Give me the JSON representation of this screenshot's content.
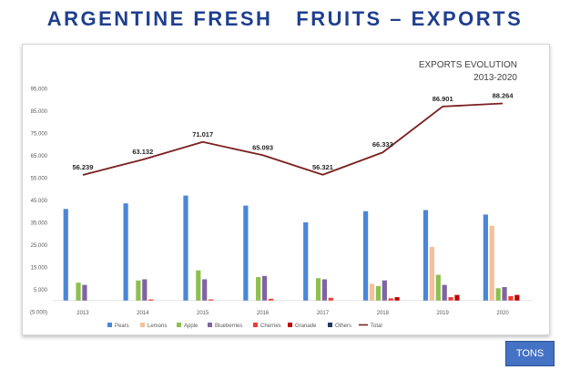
{
  "page": {
    "title": "ARGENTINE FRESH   FRUITS – EXPORTS",
    "units_label": "TONS"
  },
  "chart_data": {
    "type": "bar",
    "title": "EXPORTS EVOLUTION",
    "subtitle": "2013-2020",
    "categories": [
      "2013",
      "2014",
      "2015",
      "2016",
      "2017",
      "2018",
      "2019",
      "2020"
    ],
    "ylim": [
      -5000,
      95000
    ],
    "yticks": [
      "(5.000)",
      "5.000",
      "15.000",
      "25.000",
      "35.000",
      "45.000",
      "55.000",
      "65.000",
      "75.000",
      "85.000",
      "95.000"
    ],
    "legend_position": "bottom",
    "series": [
      {
        "name": "Pears",
        "color": "#4a86d8",
        "values": [
          41000,
          43500,
          47000,
          42500,
          35000,
          40000,
          40500,
          38500
        ]
      },
      {
        "name": "Lemons",
        "color": "#f4c09a",
        "values": [
          0,
          0,
          0,
          0,
          0,
          7500,
          24000,
          33500
        ]
      },
      {
        "name": "Apple",
        "color": "#8dc04f",
        "values": [
          8000,
          9000,
          13500,
          10500,
          10000,
          6500,
          11500,
          5500
        ]
      },
      {
        "name": "Blueberries",
        "color": "#8064a2",
        "values": [
          7000,
          9500,
          9500,
          11000,
          9500,
          9000,
          7000,
          6000
        ]
      },
      {
        "name": "Cherries",
        "color": "#f03c32",
        "values": [
          0,
          500,
          500,
          800,
          1200,
          1000,
          1500,
          2000
        ]
      },
      {
        "name": "Granade",
        "color": "#c00000",
        "values": [
          0,
          0,
          0,
          0,
          0,
          1500,
          2500,
          2500
        ]
      },
      {
        "name": "Others",
        "color": "#1f3864",
        "values": [
          0,
          0,
          0,
          0,
          0,
          0,
          0,
          0
        ]
      }
    ],
    "line": {
      "name": "Total",
      "color": "#7b1f1f",
      "values": [
        56239,
        63132,
        71017,
        65093,
        56321,
        66333,
        86901,
        88264
      ],
      "labels": [
        "56.239",
        "63.132",
        "71.017",
        "65.093",
        "56.321",
        "66.333",
        "86.901",
        "88.264"
      ]
    }
  }
}
